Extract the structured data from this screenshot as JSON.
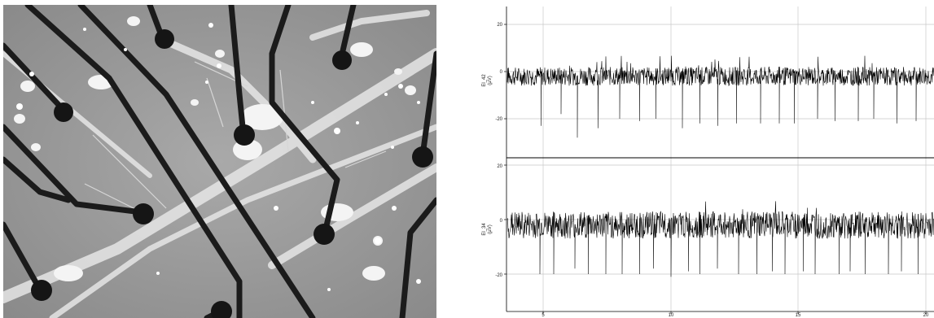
{
  "micrograph": {
    "description_icon": "microscope-image"
  },
  "recording": {
    "channels": [
      {
        "name": "El_42",
        "unit": "(µV)",
        "ylim": [
          -28,
          28
        ],
        "yticks": [
          "20",
          "0",
          "-20"
        ],
        "noise_amplitude": 4,
        "spike_depths": [
          -23,
          -18,
          -28,
          -24,
          -20,
          -21,
          -20,
          -24,
          -22,
          -23,
          -22,
          -22,
          -22,
          -22,
          -20,
          -21,
          -21,
          -20,
          -22,
          -21
        ]
      },
      {
        "name": "El_34",
        "unit": "(µV)",
        "ylim": [
          -28,
          28
        ],
        "yticks": [
          "20",
          "0",
          "-20"
        ],
        "noise_amplitude": 5,
        "spike_depths": [
          -20,
          -20,
          -18,
          -20,
          -20,
          -20,
          -20,
          -18,
          -21,
          -19,
          -20,
          -18,
          -20,
          -20,
          -19,
          -20,
          -19,
          -20,
          -20,
          -19,
          -20,
          -20,
          -19,
          -20
        ]
      }
    ],
    "xticks": [
      "5",
      "10",
      "15",
      "20"
    ],
    "colors": {
      "trace": "#000000",
      "grid": "#c8c8c8",
      "axis": "#000000"
    }
  }
}
